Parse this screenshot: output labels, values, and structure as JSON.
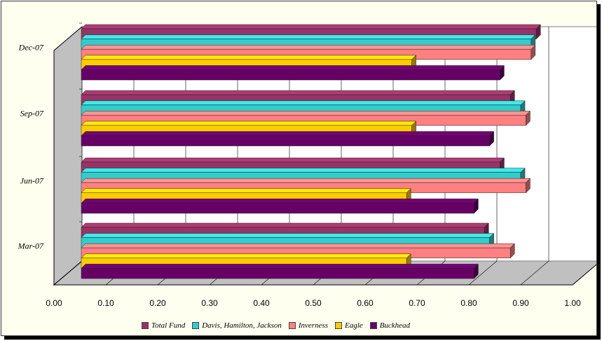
{
  "chart_data": {
    "type": "bar",
    "orientation": "horizontal",
    "categories": [
      "Mar-07",
      "Jun-07",
      "Sep-07",
      "Dec-07"
    ],
    "series": [
      {
        "name": "Total Fund",
        "color": "#993366",
        "values": [
          0.83,
          0.86,
          0.88,
          0.93
        ]
      },
      {
        "name": "Davis, Hamilton, Jackson",
        "color": "#33cccc",
        "values": [
          0.84,
          0.9,
          0.9,
          0.92
        ]
      },
      {
        "name": "Inverness",
        "color": "#ff8080",
        "values": [
          0.88,
          0.91,
          0.91,
          0.92
        ]
      },
      {
        "name": "Eagle",
        "color": "#ffcc00",
        "values": [
          0.68,
          0.68,
          0.69,
          0.69
        ]
      },
      {
        "name": "Buckhead",
        "color": "#660066",
        "values": [
          0.81,
          0.81,
          0.84,
          0.86
        ]
      }
    ],
    "xlim": [
      0,
      1.0
    ],
    "xticks": [
      "0.00",
      "0.10",
      "0.20",
      "0.30",
      "0.40",
      "0.50",
      "0.60",
      "0.70",
      "0.80",
      "0.90",
      "1.00"
    ],
    "grid": true,
    "legend": "bottom",
    "style": "3d"
  }
}
